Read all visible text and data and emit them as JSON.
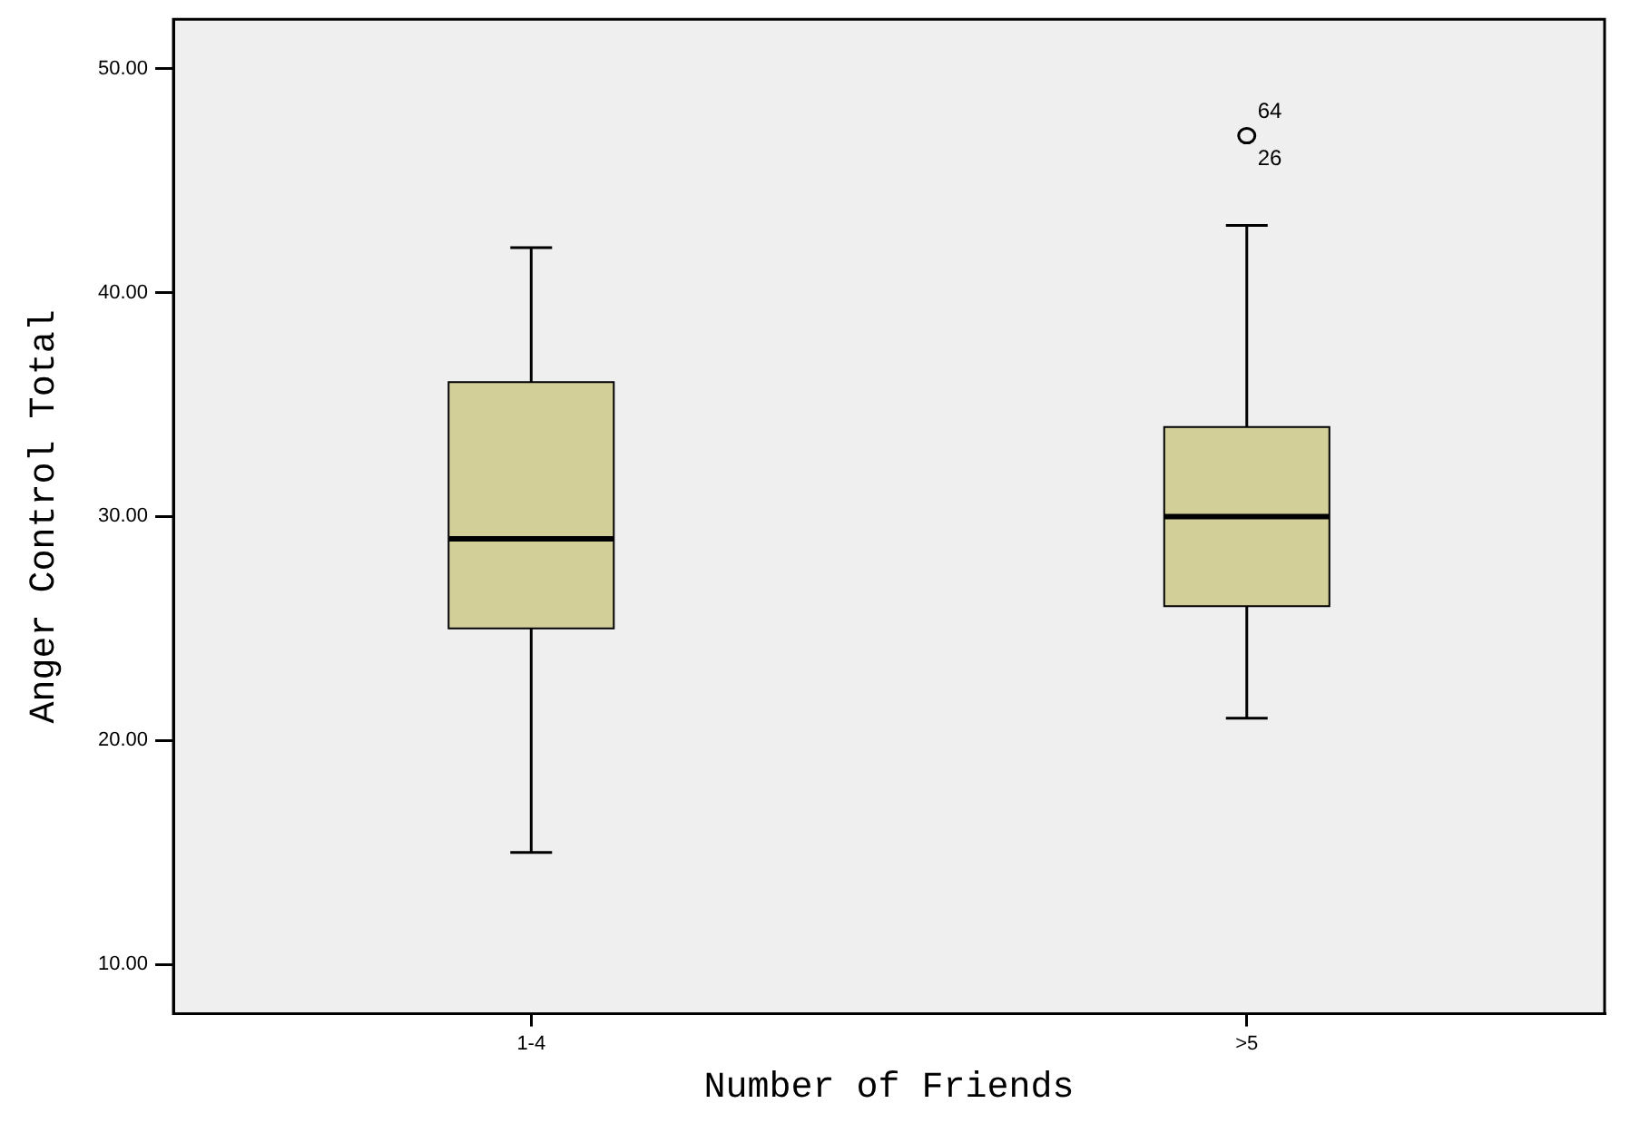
{
  "chart_data": {
    "type": "box",
    "xlabel": "Number of Friends",
    "ylabel": "Anger Control Total",
    "categories": [
      "1-4",
      ">5"
    ],
    "boxes": [
      {
        "low": 15,
        "q1": 25,
        "median": 29,
        "q3": 36,
        "high": 42
      },
      {
        "low": 21,
        "q1": 26,
        "median": 30,
        "q3": 34,
        "high": 43,
        "outliers": [
          47
        ]
      }
    ],
    "color": "#d3cf98",
    "ylim": [
      7.8,
      52.2
    ],
    "yticks": [
      {
        "value": 10,
        "label": "10.00"
      },
      {
        "value": 20,
        "label": "20.00"
      },
      {
        "value": 30,
        "label": "30.00"
      },
      {
        "value": 40,
        "label": "40.00"
      },
      {
        "value": 50,
        "label": "50.00"
      }
    ],
    "annotations": [
      "64",
      "26"
    ],
    "legend": false
  }
}
